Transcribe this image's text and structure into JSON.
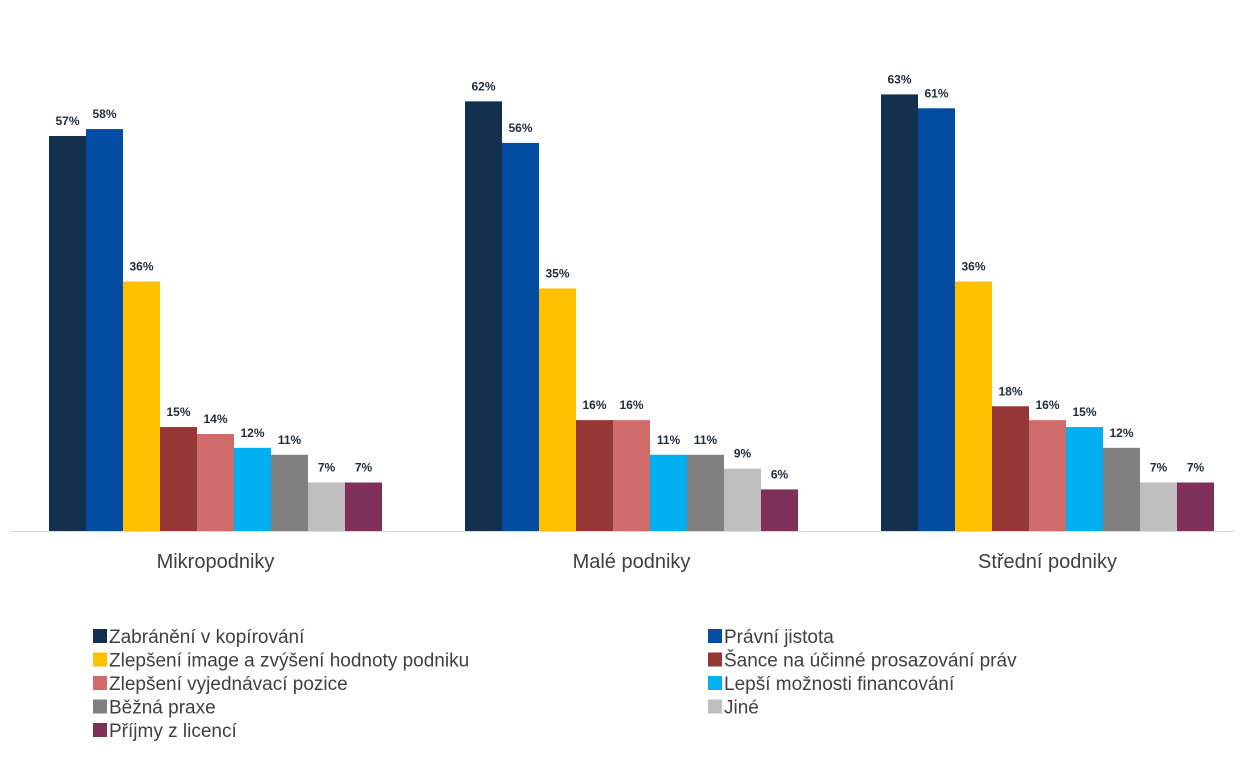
{
  "chart_data": {
    "type": "bar",
    "categories": [
      "Mikropodniky",
      "Malé podniky",
      "Střední podniky"
    ],
    "ylim": [
      0,
      70
    ],
    "series": [
      {
        "name": "Zabránění v kopírování",
        "color": "#13304f",
        "values": [
          57,
          62,
          63
        ]
      },
      {
        "name": "Právní jistota",
        "color": "#034ea2",
        "values": [
          58,
          56,
          61
        ]
      },
      {
        "name": "Zlepšení image a zvýšení hodnoty podniku",
        "color": "#ffc000",
        "values": [
          36,
          35,
          36
        ]
      },
      {
        "name": "Šance na účinné prosazování práv",
        "color": "#953735",
        "values": [
          15,
          16,
          18
        ]
      },
      {
        "name": "Zlepšení vyjednávací pozice",
        "color": "#d06b6b",
        "values": [
          14,
          16,
          16
        ]
      },
      {
        "name": "Lepší možnosti financování",
        "color": "#00b0f0",
        "values": [
          12,
          11,
          15
        ]
      },
      {
        "name": "Běžná praxe",
        "color": "#808080",
        "values": [
          11,
          11,
          12
        ]
      },
      {
        "name": "Jiné",
        "color": "#bfbfbf",
        "values": [
          7,
          9,
          7
        ]
      },
      {
        "name": "Příjmy z licencí",
        "color": "#7f3059",
        "values": [
          7,
          6,
          7
        ]
      }
    ],
    "value_labels": [
      [
        "57%",
        "62%",
        "63%"
      ],
      [
        "58%",
        "56%",
        "61%"
      ],
      [
        "36%",
        "35%",
        "36%"
      ],
      [
        "15%",
        "16%",
        "18%"
      ],
      [
        "14%",
        "16%",
        "16%"
      ],
      [
        "12%",
        "11%",
        "15%"
      ],
      [
        "11%",
        "11%",
        "12%"
      ],
      [
        "7%",
        "9%",
        "7%"
      ],
      [
        "7%",
        "6%",
        "7%"
      ]
    ],
    "legend_position": "bottom",
    "grid": false
  }
}
